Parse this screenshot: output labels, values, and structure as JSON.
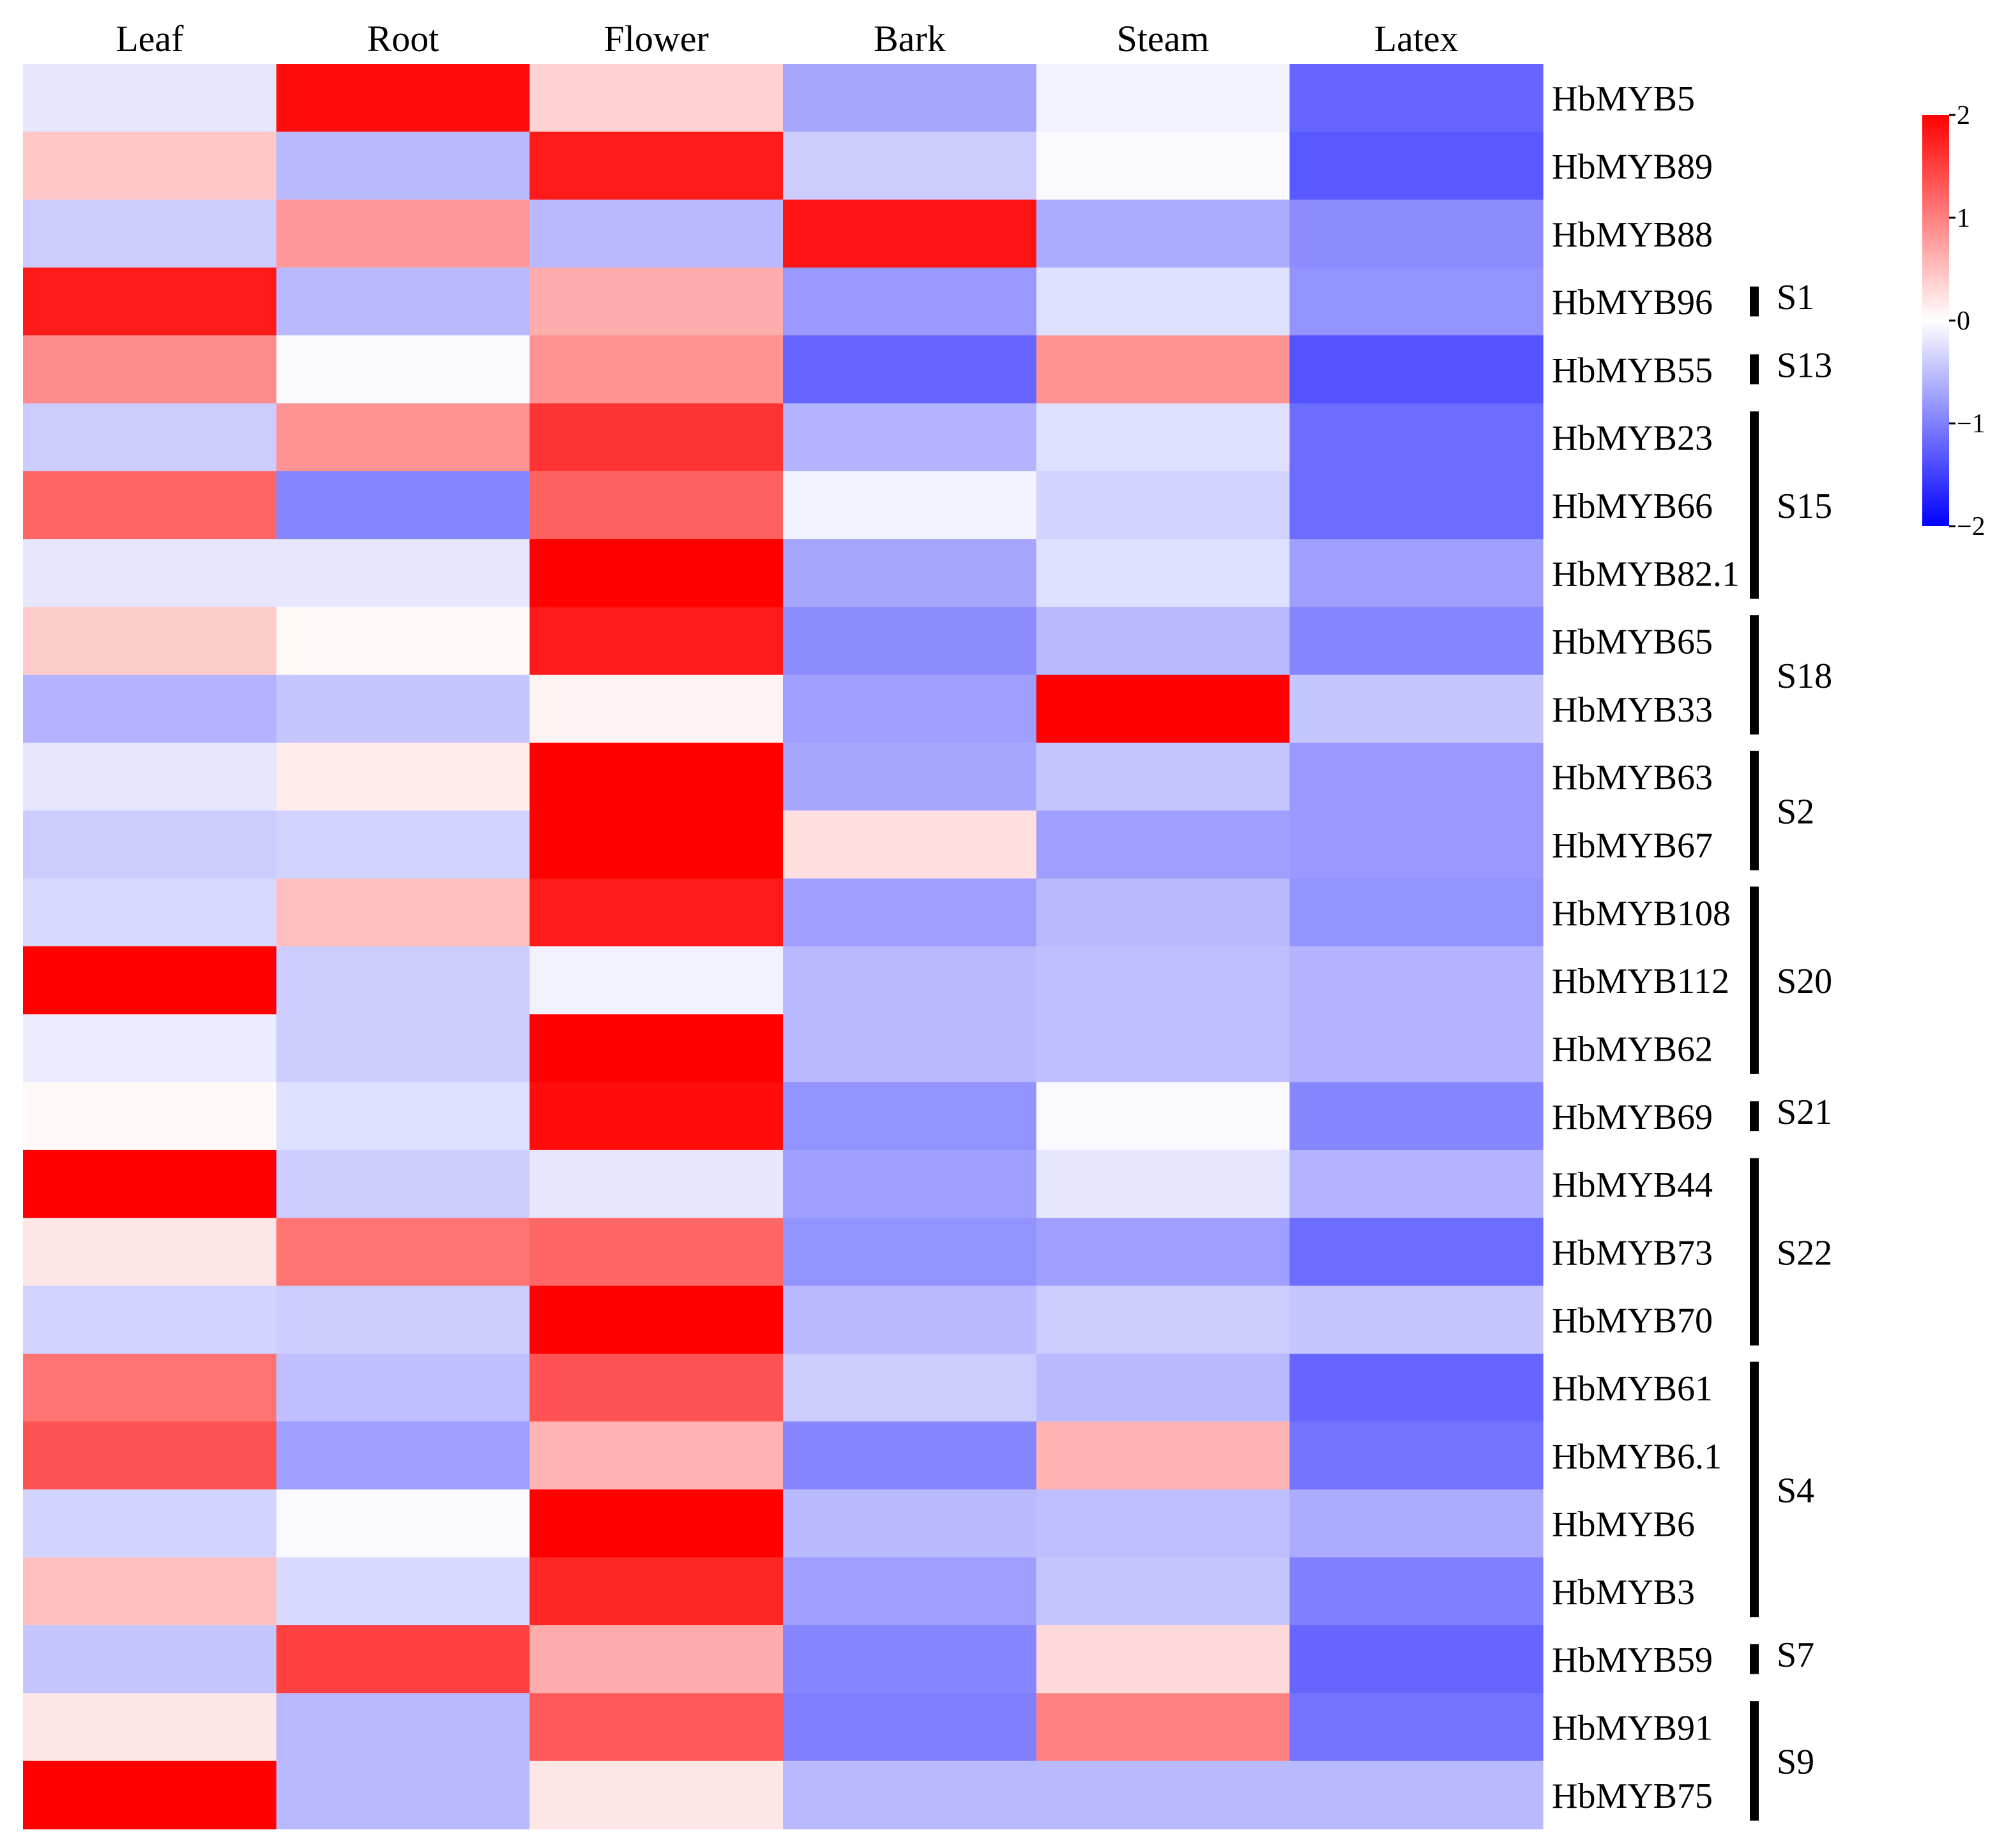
{
  "chart_data": {
    "type": "heatmap",
    "columns": [
      "Leaf",
      "Root",
      "Flower",
      "Bark",
      "Steam",
      "Latex"
    ],
    "rows": [
      "HbMYB5",
      "HbMYB89",
      "HbMYB88",
      "HbMYB96",
      "HbMYB55",
      "HbMYB23",
      "HbMYB66",
      "HbMYB82.1",
      "HbMYB65",
      "HbMYB33",
      "HbMYB63",
      "HbMYB67",
      "HbMYB108",
      "HbMYB112",
      "HbMYB62",
      "HbMYB69",
      "HbMYB44",
      "HbMYB73",
      "HbMYB70",
      "HbMYB61",
      "HbMYB6.1",
      "HbMYB6",
      "HbMYB3",
      "HbMYB59",
      "HbMYB91",
      "HbMYB75"
    ],
    "values": [
      [
        -0.2,
        1.9,
        0.35,
        -0.7,
        -0.1,
        -1.2
      ],
      [
        0.45,
        -0.55,
        1.8,
        -0.4,
        -0.05,
        -1.3
      ],
      [
        -0.4,
        0.8,
        -0.55,
        1.85,
        -0.65,
        -0.9
      ],
      [
        1.8,
        -0.55,
        0.65,
        -0.8,
        -0.25,
        -0.85
      ],
      [
        0.9,
        -0.05,
        0.85,
        -1.2,
        0.85,
        -1.35
      ],
      [
        -0.4,
        0.85,
        1.6,
        -0.6,
        -0.25,
        -1.15
      ],
      [
        1.2,
        -0.95,
        1.25,
        -0.1,
        -0.35,
        -1.15
      ],
      [
        -0.2,
        -0.2,
        2.0,
        -0.7,
        -0.25,
        -0.75
      ],
      [
        0.4,
        0.05,
        1.8,
        -0.9,
        -0.55,
        -0.95
      ],
      [
        -0.6,
        -0.45,
        0.1,
        -0.75,
        2.0,
        -0.45
      ],
      [
        -0.2,
        0.15,
        2.0,
        -0.7,
        -0.45,
        -0.8
      ],
      [
        -0.4,
        -0.35,
        2.0,
        0.25,
        -0.75,
        -0.8
      ],
      [
        -0.3,
        0.5,
        1.8,
        -0.75,
        -0.55,
        -0.85
      ],
      [
        2.0,
        -0.4,
        -0.1,
        -0.55,
        -0.5,
        -0.6
      ],
      [
        -0.15,
        -0.4,
        2.0,
        -0.55,
        -0.5,
        -0.6
      ],
      [
        0.05,
        -0.25,
        1.9,
        -0.85,
        -0.05,
        -0.95
      ],
      [
        2.0,
        -0.4,
        -0.2,
        -0.75,
        -0.2,
        -0.6
      ],
      [
        0.2,
        1.1,
        1.2,
        -0.85,
        -0.75,
        -1.15
      ],
      [
        -0.35,
        -0.4,
        2.0,
        -0.55,
        -0.4,
        -0.45
      ],
      [
        1.1,
        -0.5,
        1.35,
        -0.4,
        -0.55,
        -1.2
      ],
      [
        1.35,
        -0.75,
        0.6,
        -0.95,
        0.6,
        -1.1
      ],
      [
        -0.35,
        -0.05,
        2.0,
        -0.55,
        -0.5,
        -0.65
      ],
      [
        0.5,
        -0.3,
        1.7,
        -0.75,
        -0.45,
        -1.0
      ],
      [
        -0.45,
        1.5,
        0.65,
        -0.95,
        0.3,
        -1.2
      ],
      [
        0.2,
        -0.55,
        1.3,
        -1.0,
        1.0,
        -1.1
      ],
      [
        2.0,
        -0.55,
        0.2,
        -0.55,
        -0.55,
        -0.55
      ]
    ],
    "groups": [
      {
        "label": "S1",
        "from": 3,
        "to": 3
      },
      {
        "label": "S13",
        "from": 4,
        "to": 4
      },
      {
        "label": "S15",
        "from": 5,
        "to": 7
      },
      {
        "label": "S18",
        "from": 8,
        "to": 9
      },
      {
        "label": "S2",
        "from": 10,
        "to": 11
      },
      {
        "label": "S20",
        "from": 12,
        "to": 14
      },
      {
        "label": "S21",
        "from": 15,
        "to": 15
      },
      {
        "label": "S22",
        "from": 16,
        "to": 18
      },
      {
        "label": "S4",
        "from": 19,
        "to": 22
      },
      {
        "label": "S7",
        "from": 23,
        "to": 23
      },
      {
        "label": "S9",
        "from": 24,
        "to": 25
      }
    ],
    "colorbar": {
      "min": -2,
      "max": 2,
      "ticks": [
        2,
        1,
        0,
        -1,
        -2
      ],
      "tick_labels": [
        "2",
        "1",
        "0",
        "−1",
        "−2"
      ],
      "low_color": "#0000ff",
      "mid_color": "#ffffff",
      "high_color": "#ff0000"
    }
  }
}
